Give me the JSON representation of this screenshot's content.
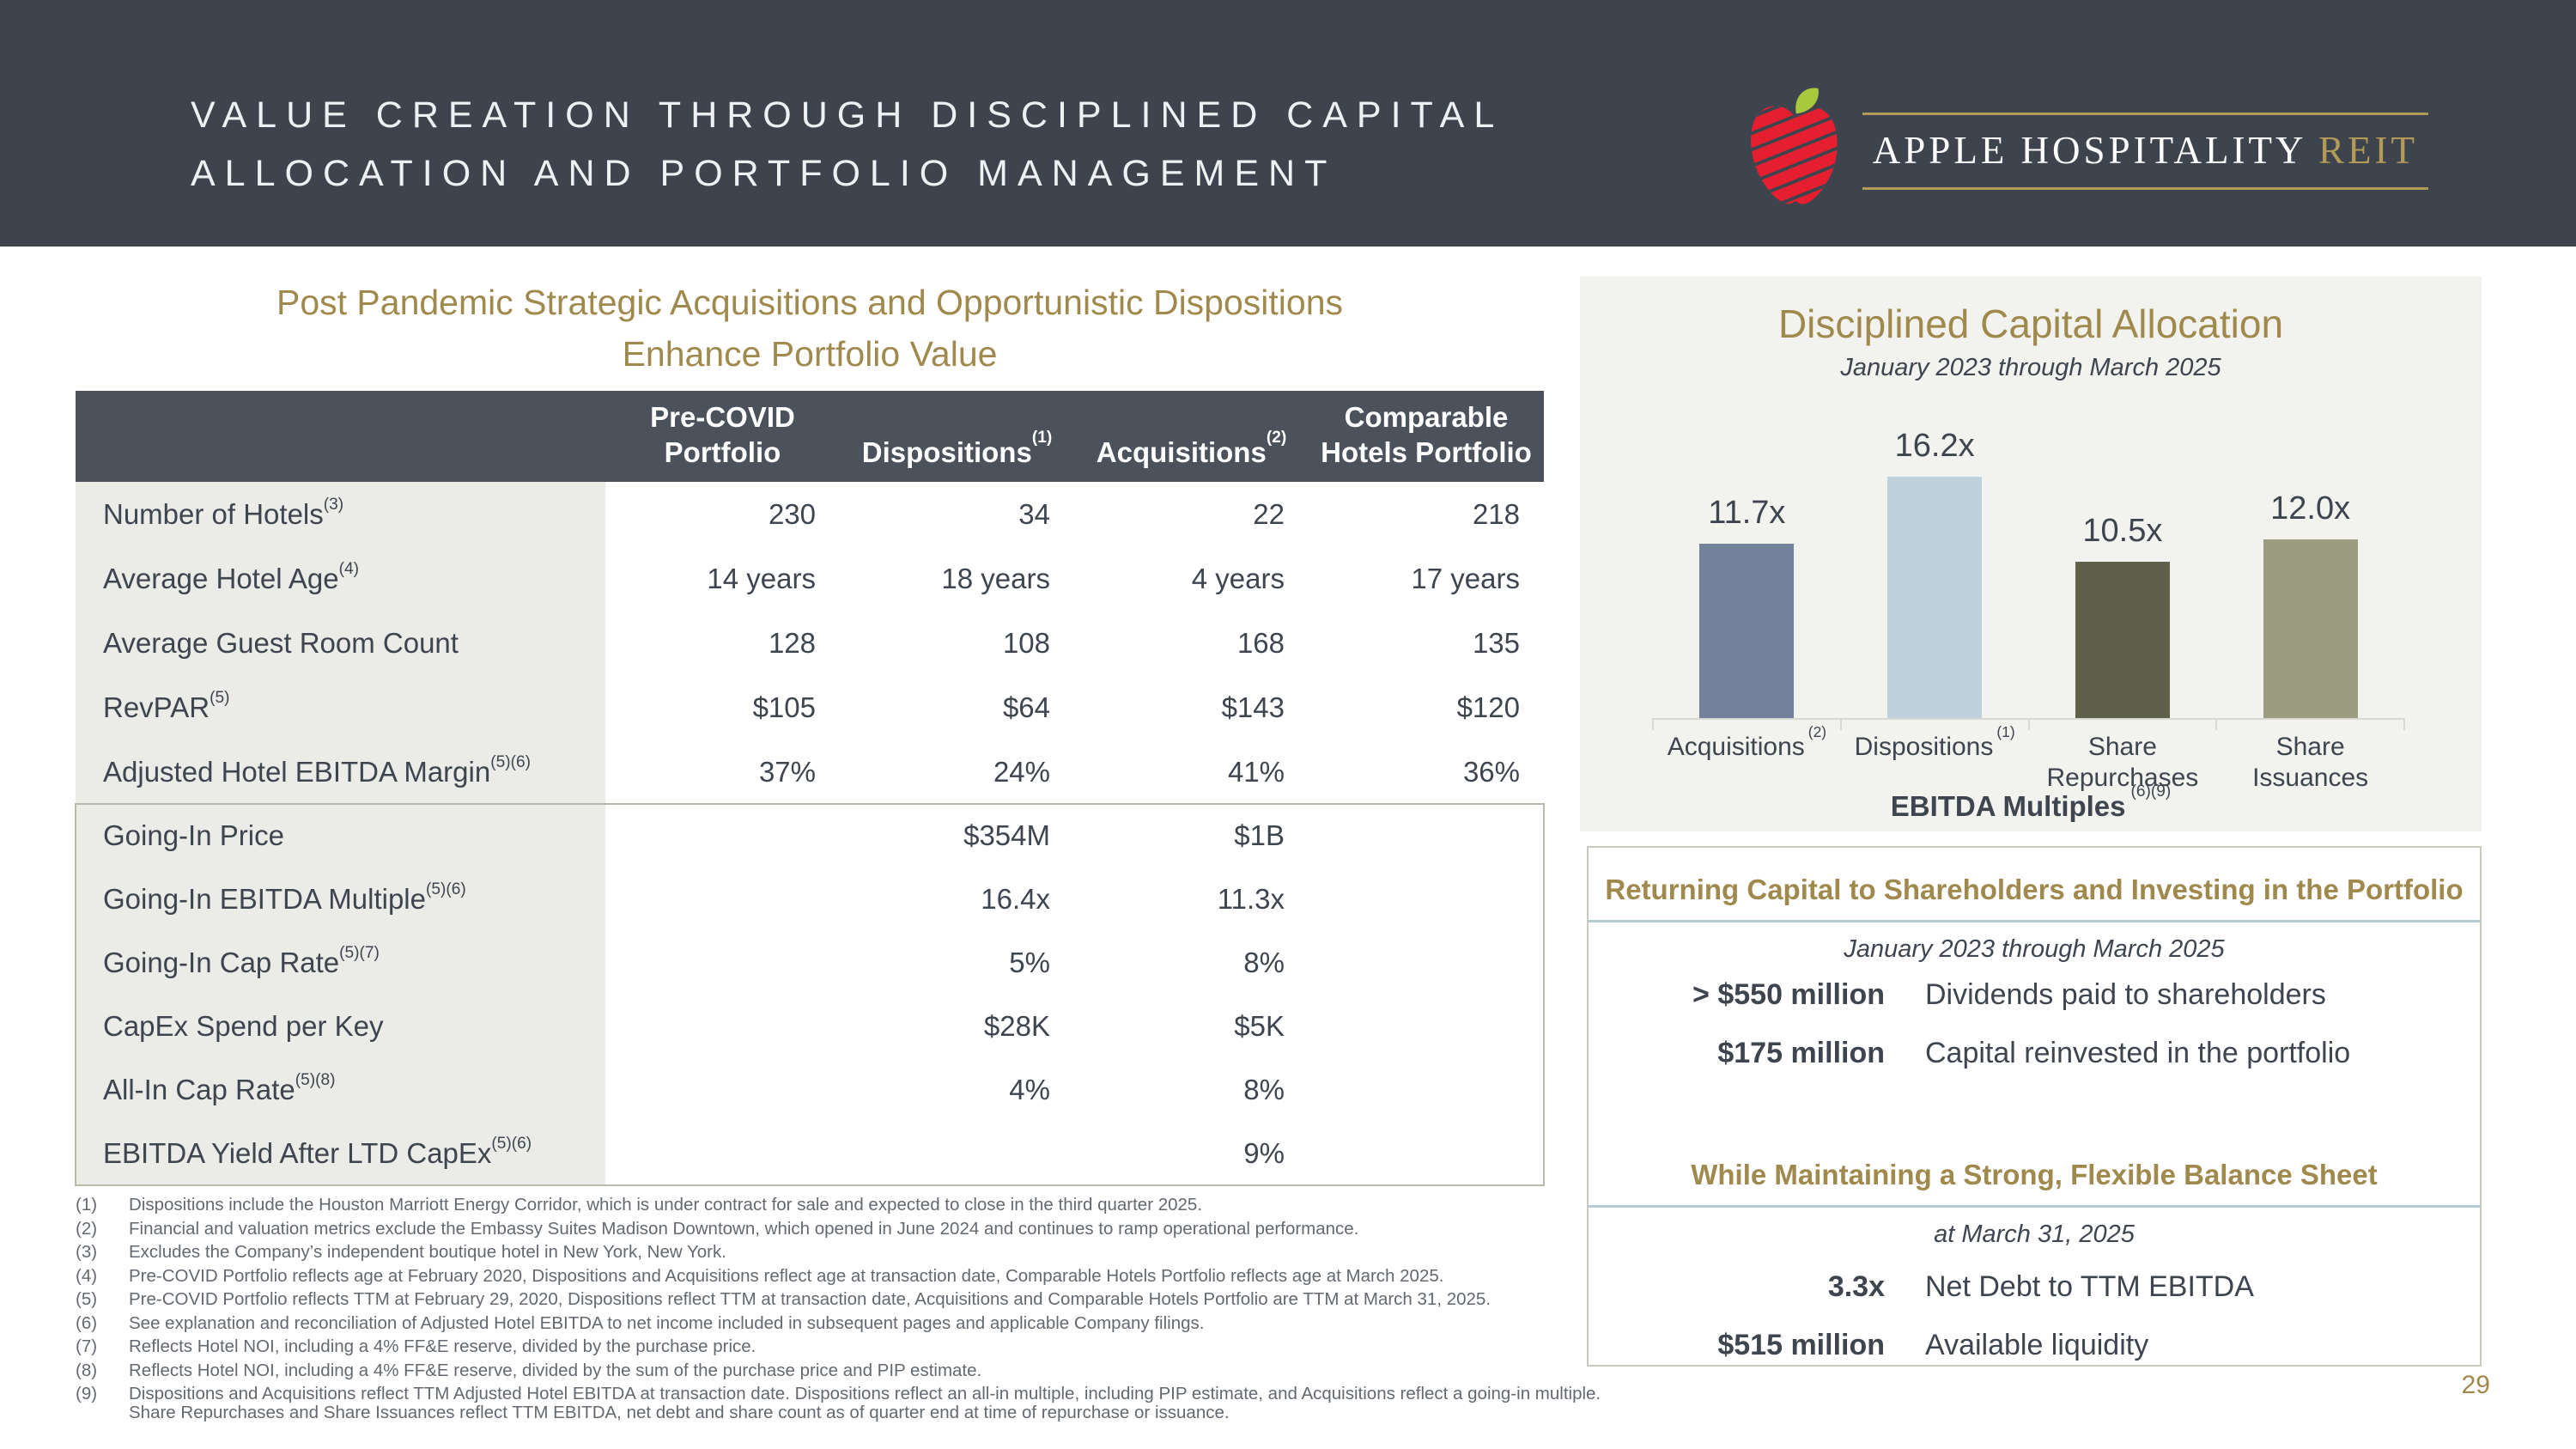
{
  "slide": {
    "title_line1": "VALUE CREATION THROUGH DISCIPLINED CAPITAL",
    "title_line2": "ALLOCATION AND PORTFOLIO MANAGEMENT",
    "page_number": "29"
  },
  "logo": {
    "brand": "APPLE HOSPITALITY",
    "brand_suffix": "REIT",
    "icon": "apple-logo"
  },
  "colors": {
    "header_band": "#3e444e",
    "table_header_bg": "#4b525c",
    "label_column_bg": "#ebebe7",
    "panel_bg": "#f2f2ee",
    "accent_gold": "#a0894c",
    "logo_gold": "#b49a57",
    "apple_red": "#e51f2f",
    "leaf_green": "#a7c93d",
    "rule_blue": "#b6ccd3",
    "text_dark": "#3e454f",
    "footnote_gray": "#63696f"
  },
  "left": {
    "section_title_line1": "Post Pandemic Strategic Acquisitions and Opportunistic Dispositions",
    "section_title_line2": "Enhance Portfolio Value",
    "table": {
      "columns": [
        {
          "lines": [
            "Pre-COVID",
            "Portfolio"
          ],
          "sup": ""
        },
        {
          "lines": [
            "Dispositions"
          ],
          "sup": "(1)"
        },
        {
          "lines": [
            "Acquisitions"
          ],
          "sup": "(2)"
        },
        {
          "lines": [
            "Comparable",
            "Hotels Portfolio"
          ],
          "sup": ""
        }
      ],
      "rows": [
        {
          "label": "Number of Hotels",
          "sup": "(3)",
          "values": [
            "230",
            "34",
            "22",
            "218"
          ]
        },
        {
          "label": "Average Hotel Age",
          "sup": "(4)",
          "values": [
            "14 years",
            "18 years",
            "4 years",
            "17 years"
          ]
        },
        {
          "label": "Average Guest Room Count",
          "sup": "",
          "values": [
            "128",
            "108",
            "168",
            "135"
          ]
        },
        {
          "label": "RevPAR",
          "sup": "(5)",
          "values": [
            "$105",
            "$64",
            "$143",
            "$120"
          ]
        },
        {
          "label": "Adjusted Hotel EBITDA Margin",
          "sup": "(5)(6)",
          "values": [
            "37%",
            "24%",
            "41%",
            "36%"
          ]
        }
      ],
      "boxed_rows": [
        {
          "label": "Going-In Price",
          "sup": "",
          "values": [
            "",
            "$354M",
            "$1B",
            ""
          ]
        },
        {
          "label": "Going-In EBITDA Multiple",
          "sup": "(5)(6)",
          "values": [
            "",
            "16.4x",
            "11.3x",
            ""
          ]
        },
        {
          "label": "Going-In Cap Rate",
          "sup": "(5)(7)",
          "values": [
            "",
            "5%",
            "8%",
            ""
          ]
        },
        {
          "label": "CapEx Spend per Key",
          "sup": "",
          "values": [
            "",
            "$28K",
            "$5K",
            ""
          ]
        },
        {
          "label": "All-In Cap Rate",
          "sup": "(5)(8)",
          "values": [
            "",
            "4%",
            "8%",
            ""
          ]
        },
        {
          "label": "EBITDA Yield After LTD CapEx",
          "sup": "(5)(6)",
          "values": [
            "",
            "",
            "9%",
            ""
          ]
        }
      ]
    },
    "footnotes": [
      {
        "num": "(1)",
        "text": "Dispositions include the Houston Marriott Energy Corridor, which is under contract for sale and expected to close in the third quarter 2025."
      },
      {
        "num": "(2)",
        "text": "Financial and valuation metrics exclude the Embassy Suites Madison Downtown, which opened in June 2024 and continues to ramp operational performance."
      },
      {
        "num": "(3)",
        "text": "Excludes the Company’s independent boutique hotel in New York, New York."
      },
      {
        "num": "(4)",
        "text": "Pre-COVID Portfolio reflects age at February 2020, Dispositions and Acquisitions reflect age at transaction date, Comparable Hotels Portfolio reflects age at March 2025."
      },
      {
        "num": "(5)",
        "text": "Pre-COVID Portfolio reflects TTM at February 29, 2020, Dispositions reflect TTM at transaction date, Acquisitions and Comparable Hotels Portfolio are TTM at March 31, 2025."
      },
      {
        "num": "(6)",
        "text": "See explanation and reconciliation of Adjusted Hotel EBITDA to net income included in subsequent pages and applicable Company filings."
      },
      {
        "num": "(7)",
        "text": "Reflects Hotel NOI, including a 4% FF&E reserve, divided by the purchase price."
      },
      {
        "num": "(8)",
        "text": "Reflects Hotel NOI, including a 4% FF&E reserve, divided by the sum of the purchase price and PIP estimate."
      },
      {
        "num": "(9)",
        "text": "Dispositions and Acquisitions reflect TTM Adjusted Hotel EBITDA at transaction date. Dispositions reflect an all-in multiple, including PIP estimate, and Acquisitions reflect a going-in multiple. Share Repurchases and Share Issuances reflect TTM EBITDA, net debt and share count as of quarter end at time of repurchase or issuance."
      }
    ]
  },
  "chart_data": {
    "type": "bar",
    "title": "Disciplined Capital Allocation",
    "subtitle": "January 2023 through March 2025",
    "categories": [
      "Acquisitions",
      "Dispositions",
      "Share Repurchases",
      "Share Issuances"
    ],
    "category_sups": [
      "(2)",
      "(1)",
      "",
      ""
    ],
    "values": [
      11.7,
      16.2,
      10.5,
      12.0
    ],
    "value_labels": [
      "11.7x",
      "16.2x",
      "10.5x",
      "12.0x"
    ],
    "bar_colors": [
      "#74819a",
      "#bed1dd",
      "#5f604a",
      "#9c9c81"
    ],
    "xlabel": "EBITDA Multiples",
    "xlabel_sup": "(6)(9)",
    "ylabel": "",
    "ylim": [
      0,
      16.2
    ],
    "grid": false,
    "legend_position": "none"
  },
  "capital_box": {
    "heading1": "Returning Capital to Shareholders and Investing in the Portfolio",
    "period1": "January 2023 through March 2025",
    "items1": [
      {
        "amount": "> $550 million",
        "desc": "Dividends paid to shareholders"
      },
      {
        "amount": "$175 million",
        "desc": "Capital reinvested in the portfolio"
      }
    ],
    "heading2": "While Maintaining a Strong, Flexible Balance Sheet",
    "period2": "at March 31, 2025",
    "items2": [
      {
        "amount": "3.3x",
        "desc": "Net Debt to TTM EBITDA"
      },
      {
        "amount": "$515 million",
        "desc": "Available liquidity"
      }
    ]
  }
}
